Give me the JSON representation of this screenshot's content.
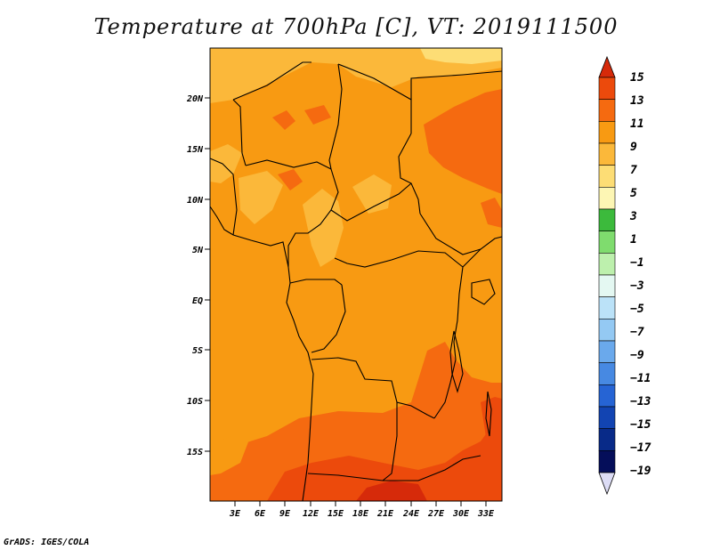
{
  "title": "Temperature at 700hPa [C], VT: 2019111500",
  "credit": "GrADS: IGES/COLA",
  "map": {
    "region": "Central Africa",
    "lat_ticks": [
      "20N",
      "15N",
      "10N",
      "5N",
      "EQ",
      "5S",
      "10S",
      "15S"
    ],
    "lon_ticks": [
      "3E",
      "6E",
      "9E",
      "12E",
      "15E",
      "18E",
      "21E",
      "24E",
      "27E",
      "30E",
      "33E"
    ]
  },
  "colorbar": {
    "labels": [
      "15",
      "13",
      "11",
      "9",
      "7",
      "5",
      "3",
      "1",
      "−1",
      "−3",
      "−5",
      "−7",
      "−9",
      "−11",
      "−13",
      "−15",
      "−17",
      "−19"
    ],
    "colors": [
      "#d62a0a",
      "#ec4a0c",
      "#f56a10",
      "#f89a12",
      "#fbb83a",
      "#fddd75",
      "#fdf6b4",
      "#3cba3c",
      "#7fdc6e",
      "#bdf0ad",
      "#e4f8f2",
      "#bbe2f8",
      "#94c9f3",
      "#6aa9ec",
      "#4789e2",
      "#2664d4",
      "#1244b2",
      "#082a88",
      "#050e5a",
      "#dcdcf5"
    ]
  }
}
